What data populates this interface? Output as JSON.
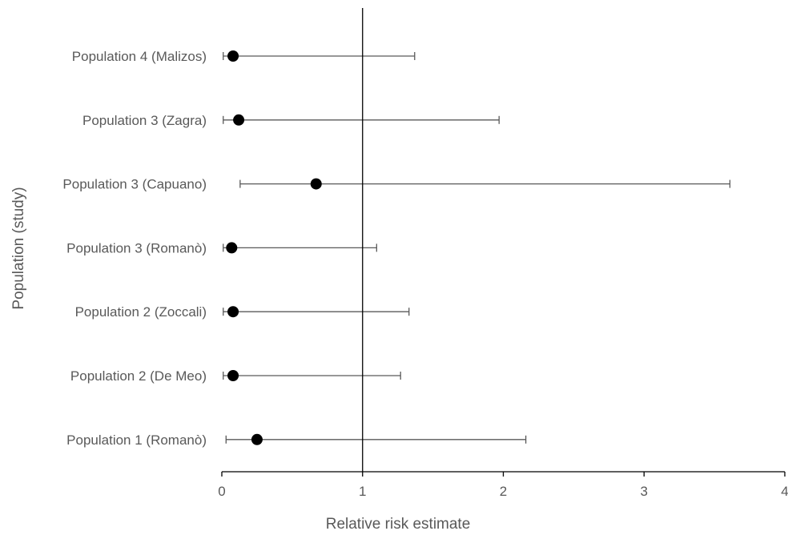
{
  "chart_data": {
    "type": "scatter",
    "title": "",
    "xlabel": "Relative risk estimate",
    "ylabel": "Population (study)",
    "xlim": [
      0,
      4
    ],
    "xticks": [
      0,
      1,
      2,
      3,
      4
    ],
    "reference_line_x": 1,
    "grid": false,
    "legend": "none",
    "categories": [
      "Population 4 (Malizos)",
      "Population 3 (Zagra)",
      "Population 3 (Capuano)",
      "Population 3 (Romanò)",
      "Population 2 (Zoccali)",
      "Population 2 (De Meo)",
      "Population 1 (Romanò)"
    ],
    "estimates": [
      0.08,
      0.12,
      0.67,
      0.07,
      0.08,
      0.08,
      0.25
    ],
    "lower": [
      0.01,
      0.01,
      0.13,
      0.01,
      0.01,
      0.01,
      0.03
    ],
    "upper": [
      1.37,
      1.97,
      3.61,
      1.1,
      1.33,
      1.27,
      2.16
    ],
    "colors": {
      "marker": "#000000",
      "errorbar": "#595959",
      "axis": "#000000"
    }
  }
}
